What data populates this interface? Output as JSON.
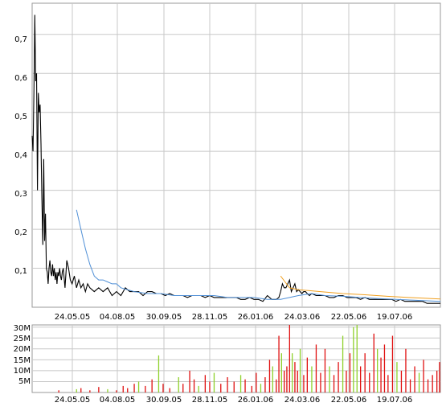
{
  "chart_data": [
    {
      "type": "line",
      "title": "",
      "xlabel": "",
      "ylabel": "",
      "x_ticks": [
        "24.05.05",
        "04.08.05",
        "30.09.05",
        "28.11.05",
        "26.01.06",
        "24.03.06",
        "22.05.06",
        "19.07.06"
      ],
      "y_ticks": [
        "0,1",
        "0,2",
        "0,3",
        "0,4",
        "0,5",
        "0,6",
        "0,7"
      ],
      "ylim": [
        0,
        0.78
      ],
      "grid": true,
      "series": [
        {
          "kind": "price",
          "color": "#000000",
          "x": [
            0,
            2,
            4,
            6,
            8,
            10,
            12,
            14,
            16,
            18,
            20,
            22,
            24,
            26,
            28,
            30,
            32,
            34,
            36,
            38,
            40,
            42,
            44,
            46,
            48,
            50,
            52,
            54,
            56,
            58,
            60,
            62,
            64,
            66,
            68,
            70,
            74,
            78,
            82,
            86,
            90,
            95,
            100,
            105,
            110,
            115,
            120,
            125,
            130,
            140,
            150,
            160,
            170,
            180,
            190,
            200,
            210,
            220,
            230,
            240,
            250,
            260,
            270,
            280,
            290,
            300,
            310,
            320,
            330,
            340,
            350,
            360,
            370,
            380,
            390,
            400,
            410,
            420,
            430,
            440,
            450,
            460,
            470,
            480,
            490,
            500,
            510,
            520,
            530,
            540,
            550,
            556,
            560,
            564,
            568,
            572,
            576,
            580,
            584,
            588,
            592,
            596,
            600,
            604,
            608,
            612,
            616,
            620,
            625,
            630,
            640,
            650,
            660,
            670,
            680,
            690,
            700,
            710,
            720,
            730,
            740,
            750,
            760,
            770,
            780,
            790,
            800,
            810,
            820,
            830,
            840,
            850,
            860,
            870,
            880,
            890,
            900,
            910,
            920
          ],
          "y": [
            0.44,
            0.4,
            0.55,
            0.75,
            0.58,
            0.6,
            0.3,
            0.55,
            0.5,
            0.52,
            0.42,
            0.28,
            0.16,
            0.38,
            0.17,
            0.24,
            0.1,
            0.09,
            0.06,
            0.1,
            0.12,
            0.09,
            0.08,
            0.11,
            0.08,
            0.1,
            0.07,
            0.09,
            0.06,
            0.09,
            0.08,
            0.1,
            0.08,
            0.07,
            0.09,
            0.1,
            0.05,
            0.12,
            0.1,
            0.07,
            0.06,
            0.08,
            0.05,
            0.07,
            0.05,
            0.06,
            0.04,
            0.06,
            0.05,
            0.04,
            0.05,
            0.04,
            0.05,
            0.03,
            0.04,
            0.03,
            0.05,
            0.04,
            0.04,
            0.04,
            0.03,
            0.04,
            0.04,
            0.035,
            0.035,
            0.03,
            0.035,
            0.03,
            0.03,
            0.03,
            0.025,
            0.03,
            0.03,
            0.03,
            0.025,
            0.03,
            0.025,
            0.025,
            0.025,
            0.025,
            0.025,
            0.025,
            0.02,
            0.02,
            0.025,
            0.02,
            0.02,
            0.015,
            0.03,
            0.02,
            0.02,
            0.025,
            0.04,
            0.06,
            0.05,
            0.05,
            0.06,
            0.07,
            0.04,
            0.05,
            0.06,
            0.04,
            0.045,
            0.04,
            0.035,
            0.04,
            0.04,
            0.035,
            0.03,
            0.035,
            0.03,
            0.03,
            0.03,
            0.025,
            0.025,
            0.03,
            0.03,
            0.025,
            0.025,
            0.025,
            0.02,
            0.025,
            0.02,
            0.02,
            0.02,
            0.02,
            0.02,
            0.02,
            0.015,
            0.02,
            0.015,
            0.015,
            0.015,
            0.015,
            0.015,
            0.01,
            0.01,
            0.01,
            0.01
          ]
        },
        {
          "kind": "moving-average",
          "color": "#4f8fd6",
          "x": [
            100,
            110,
            120,
            130,
            140,
            150,
            160,
            170,
            180,
            190,
            200,
            230,
            260,
            290,
            320,
            350,
            380,
            410,
            440,
            470,
            500,
            530,
            560,
            580,
            600,
            630,
            660,
            700,
            740,
            780,
            820,
            860,
            900,
            920
          ],
          "y": [
            0.25,
            0.2,
            0.15,
            0.11,
            0.08,
            0.07,
            0.07,
            0.065,
            0.06,
            0.06,
            0.05,
            0.04,
            0.035,
            0.035,
            0.03,
            0.03,
            0.03,
            0.03,
            0.025,
            0.025,
            0.025,
            0.02,
            0.02,
            0.025,
            0.03,
            0.035,
            0.03,
            0.028,
            0.025,
            0.022,
            0.02,
            0.018,
            0.016,
            0.015
          ]
        },
        {
          "kind": "moving-average",
          "color": "#f0a020",
          "x": [
            560,
            570,
            580,
            600,
            650,
            700,
            750,
            800,
            850,
            900,
            920
          ],
          "y": [
            0.08,
            0.065,
            0.05,
            0.045,
            0.04,
            0.035,
            0.032,
            0.028,
            0.025,
            0.022,
            0.021
          ]
        }
      ]
    },
    {
      "type": "bar",
      "title": "",
      "xlabel": "",
      "ylabel": "",
      "x_ticks": [
        "24.05.05",
        "04.08.05",
        "30.09.05",
        "28.11.05",
        "26.01.06",
        "24.03.06",
        "22.05.06",
        "19.07.06"
      ],
      "y_ticks": [
        "5M",
        "10M",
        "15M",
        "20M",
        "25M",
        "30M"
      ],
      "ylim": [
        0,
        31
      ],
      "grid": true,
      "colors": {
        "up": "#8fd12c",
        "down": "#e01010"
      },
      "bars": [
        {
          "x": 60,
          "v": 1,
          "c": "down"
        },
        {
          "x": 100,
          "v": 1.5,
          "c": "up"
        },
        {
          "x": 110,
          "v": 2,
          "c": "down"
        },
        {
          "x": 130,
          "v": 1,
          "c": "down"
        },
        {
          "x": 150,
          "v": 2.5,
          "c": "down"
        },
        {
          "x": 170,
          "v": 1.5,
          "c": "up"
        },
        {
          "x": 190,
          "v": 1,
          "c": "down"
        },
        {
          "x": 205,
          "v": 3,
          "c": "down"
        },
        {
          "x": 215,
          "v": 2,
          "c": "down"
        },
        {
          "x": 230,
          "v": 4,
          "c": "down"
        },
        {
          "x": 240,
          "v": 5,
          "c": "up"
        },
        {
          "x": 255,
          "v": 3,
          "c": "down"
        },
        {
          "x": 270,
          "v": 6,
          "c": "down"
        },
        {
          "x": 285,
          "v": 17,
          "c": "up"
        },
        {
          "x": 295,
          "v": 4,
          "c": "down"
        },
        {
          "x": 310,
          "v": 2,
          "c": "down"
        },
        {
          "x": 330,
          "v": 7,
          "c": "up"
        },
        {
          "x": 340,
          "v": 4,
          "c": "down"
        },
        {
          "x": 355,
          "v": 10,
          "c": "down"
        },
        {
          "x": 365,
          "v": 6,
          "c": "down"
        },
        {
          "x": 375,
          "v": 3,
          "c": "up"
        },
        {
          "x": 390,
          "v": 8,
          "c": "down"
        },
        {
          "x": 400,
          "v": 5,
          "c": "down"
        },
        {
          "x": 410,
          "v": 9,
          "c": "up"
        },
        {
          "x": 425,
          "v": 4,
          "c": "down"
        },
        {
          "x": 440,
          "v": 7,
          "c": "down"
        },
        {
          "x": 455,
          "v": 5,
          "c": "down"
        },
        {
          "x": 470,
          "v": 8,
          "c": "up"
        },
        {
          "x": 480,
          "v": 6,
          "c": "down"
        },
        {
          "x": 495,
          "v": 3,
          "c": "down"
        },
        {
          "x": 505,
          "v": 9,
          "c": "down"
        },
        {
          "x": 515,
          "v": 4,
          "c": "up"
        },
        {
          "x": 525,
          "v": 7,
          "c": "down"
        },
        {
          "x": 535,
          "v": 15,
          "c": "down"
        },
        {
          "x": 542,
          "v": 12,
          "c": "up"
        },
        {
          "x": 550,
          "v": 6,
          "c": "down"
        },
        {
          "x": 556,
          "v": 26,
          "c": "down"
        },
        {
          "x": 562,
          "v": 18,
          "c": "up"
        },
        {
          "x": 568,
          "v": 10,
          "c": "down"
        },
        {
          "x": 574,
          "v": 12,
          "c": "down"
        },
        {
          "x": 580,
          "v": 31,
          "c": "down"
        },
        {
          "x": 586,
          "v": 18,
          "c": "up"
        },
        {
          "x": 592,
          "v": 14,
          "c": "down"
        },
        {
          "x": 598,
          "v": 10,
          "c": "down"
        },
        {
          "x": 604,
          "v": 20,
          "c": "up"
        },
        {
          "x": 612,
          "v": 8,
          "c": "down"
        },
        {
          "x": 620,
          "v": 16,
          "c": "down"
        },
        {
          "x": 630,
          "v": 12,
          "c": "up"
        },
        {
          "x": 640,
          "v": 22,
          "c": "down"
        },
        {
          "x": 650,
          "v": 9,
          "c": "down"
        },
        {
          "x": 660,
          "v": 20,
          "c": "down"
        },
        {
          "x": 670,
          "v": 12,
          "c": "up"
        },
        {
          "x": 680,
          "v": 8,
          "c": "down"
        },
        {
          "x": 690,
          "v": 14,
          "c": "down"
        },
        {
          "x": 700,
          "v": 26,
          "c": "up"
        },
        {
          "x": 708,
          "v": 10,
          "c": "down"
        },
        {
          "x": 716,
          "v": 18,
          "c": "down"
        },
        {
          "x": 724,
          "v": 30,
          "c": "up"
        },
        {
          "x": 732,
          "v": 31,
          "c": "up"
        },
        {
          "x": 740,
          "v": 12,
          "c": "down"
        },
        {
          "x": 750,
          "v": 18,
          "c": "down"
        },
        {
          "x": 760,
          "v": 9,
          "c": "down"
        },
        {
          "x": 770,
          "v": 27,
          "c": "down"
        },
        {
          "x": 778,
          "v": 20,
          "c": "up"
        },
        {
          "x": 786,
          "v": 16,
          "c": "down"
        },
        {
          "x": 794,
          "v": 22,
          "c": "down"
        },
        {
          "x": 802,
          "v": 8,
          "c": "down"
        },
        {
          "x": 812,
          "v": 26,
          "c": "down"
        },
        {
          "x": 822,
          "v": 14,
          "c": "up"
        },
        {
          "x": 832,
          "v": 10,
          "c": "down"
        },
        {
          "x": 842,
          "v": 20,
          "c": "down"
        },
        {
          "x": 852,
          "v": 6,
          "c": "down"
        },
        {
          "x": 862,
          "v": 12,
          "c": "down"
        },
        {
          "x": 872,
          "v": 9,
          "c": "up"
        },
        {
          "x": 882,
          "v": 15,
          "c": "down"
        },
        {
          "x": 892,
          "v": 6,
          "c": "down"
        },
        {
          "x": 902,
          "v": 8,
          "c": "down"
        },
        {
          "x": 912,
          "v": 10,
          "c": "down"
        },
        {
          "x": 918,
          "v": 14,
          "c": "down"
        }
      ]
    }
  ]
}
